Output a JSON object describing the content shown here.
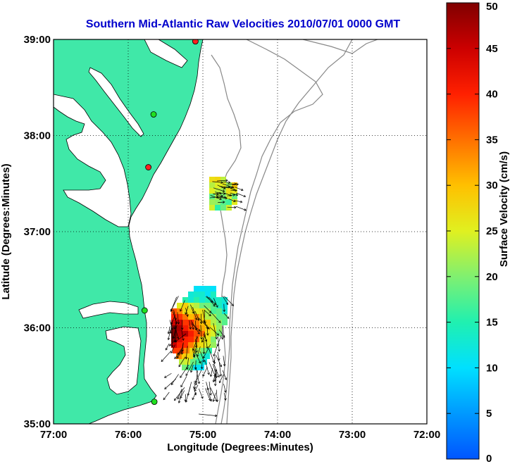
{
  "title": "Southern Mid-Atlantic Raw Velocities 2010/07/01 0000 GMT",
  "title_color": "#0000cc",
  "land_color": "#40e8a8",
  "coast_color": "#000000",
  "bathy_color": "#888888",
  "x_axis": {
    "label": "Longitude (Degrees:Minutes)",
    "ticks": [
      "77:00",
      "76:00",
      "75:00",
      "74:00",
      "73:00",
      "72:00"
    ]
  },
  "y_axis": {
    "label": "Latitude (Degrees:Minutes)",
    "ticks": [
      "39:00",
      "38:00",
      "37:00",
      "36:00",
      "35:00"
    ]
  },
  "colorbar": {
    "label": "Surface Velocity (cm/s)",
    "ticks": [
      "50",
      "45",
      "40",
      "35",
      "30",
      "25",
      "20",
      "15",
      "10",
      "5",
      "0"
    ],
    "min": 0,
    "max": 50
  },
  "stations": [
    {
      "lon": -75.1,
      "lat": 38.98,
      "color": "#ff2020"
    },
    {
      "lon": -75.66,
      "lat": 38.22,
      "color": "#20e020"
    },
    {
      "lon": -75.73,
      "lat": 37.67,
      "color": "#ff2020"
    },
    {
      "lon": -75.78,
      "lat": 36.18,
      "color": "#20e020"
    },
    {
      "lon": -75.65,
      "lat": 35.23,
      "color": "#20e020"
    }
  ]
}
